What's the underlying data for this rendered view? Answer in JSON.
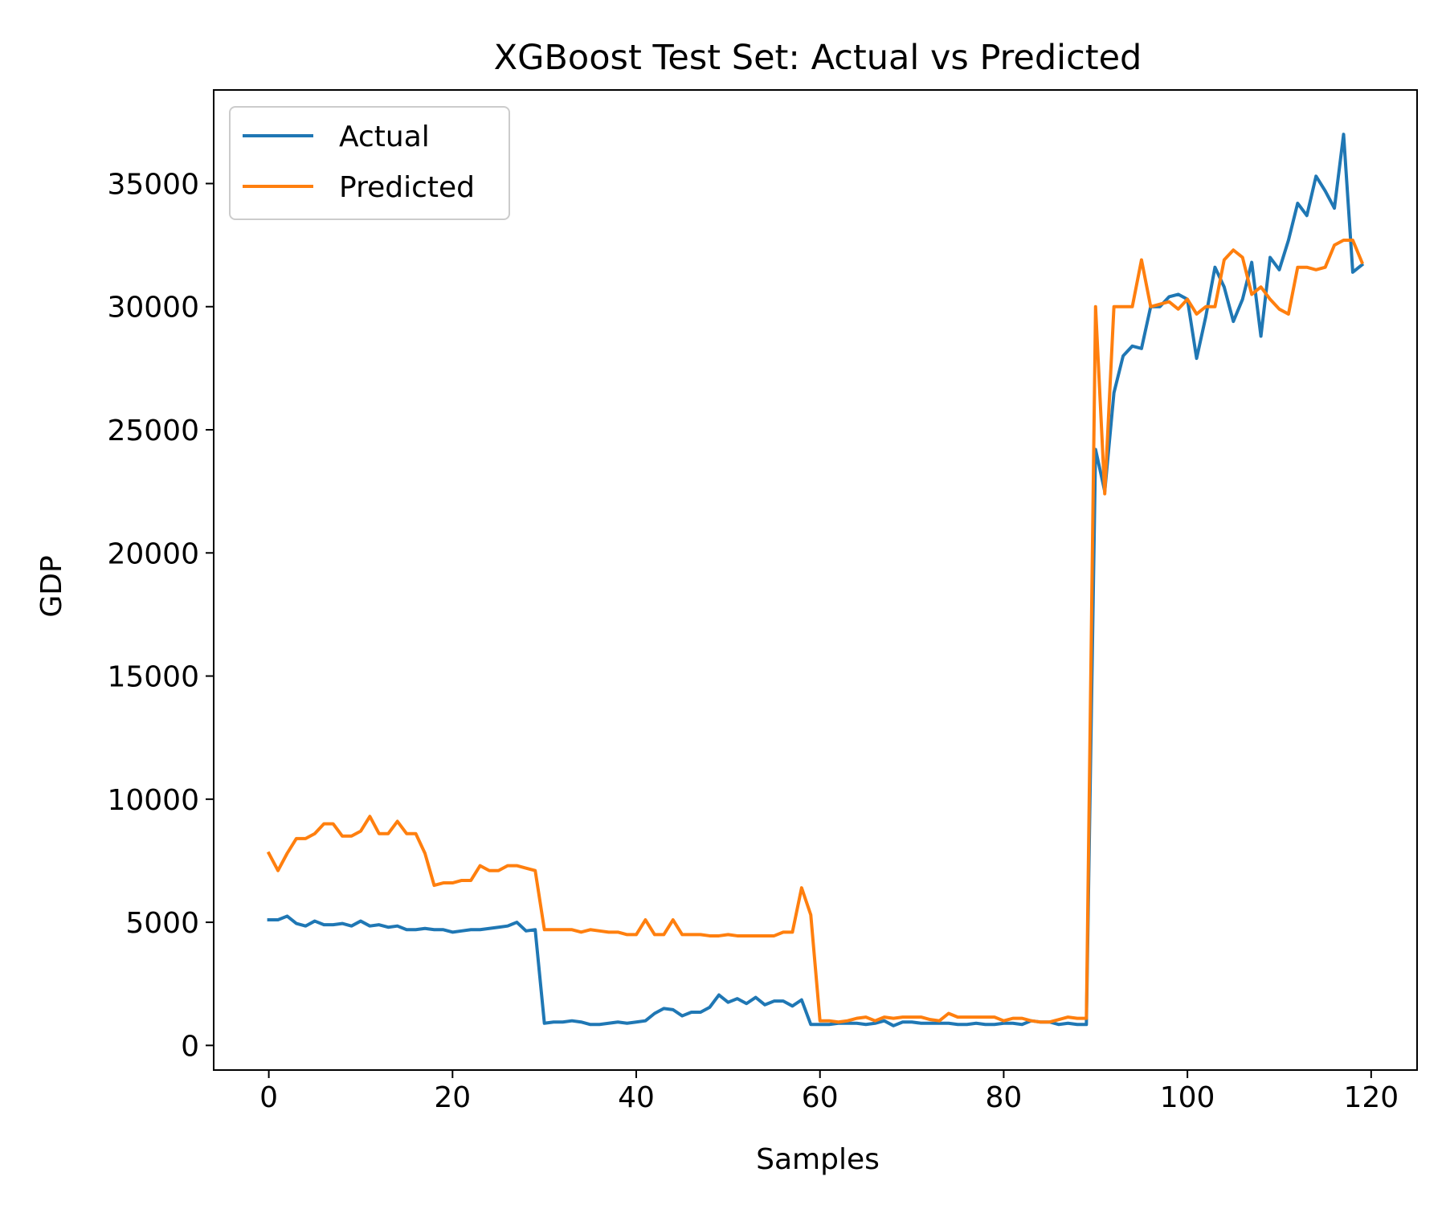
{
  "chart_data": {
    "type": "line",
    "title": "XGBoost Test Set: Actual vs Predicted",
    "xlabel": "Samples",
    "ylabel": "GDP",
    "xlim": [
      -6,
      125
    ],
    "ylim": [
      -1000,
      38800
    ],
    "xticks": [
      0,
      20,
      40,
      60,
      80,
      100,
      120
    ],
    "yticks": [
      0,
      5000,
      10000,
      15000,
      20000,
      25000,
      30000,
      35000
    ],
    "grid": false,
    "legend_position": "upper left",
    "series": [
      {
        "name": "Actual",
        "color": "#1f77b4",
        "values": [
          5100,
          5100,
          5250,
          4950,
          4850,
          5050,
          4900,
          4900,
          4950,
          4850,
          5050,
          4850,
          4900,
          4800,
          4850,
          4700,
          4700,
          4750,
          4700,
          4700,
          4600,
          4650,
          4700,
          4700,
          4750,
          4800,
          4850,
          5000,
          4650,
          4700,
          900,
          950,
          950,
          1000,
          950,
          850,
          850,
          900,
          950,
          900,
          950,
          1000,
          1300,
          1500,
          1450,
          1200,
          1350,
          1350,
          1550,
          2050,
          1750,
          1900,
          1700,
          1950,
          1650,
          1800,
          1800,
          1600,
          1850,
          850,
          850,
          850,
          900,
          900,
          900,
          850,
          900,
          1000,
          800,
          950,
          950,
          900,
          900,
          900,
          900,
          850,
          850,
          900,
          850,
          850,
          900,
          900,
          850,
          1000,
          950,
          950,
          850,
          900,
          850,
          850,
          24200,
          22500,
          26500,
          28000,
          28400,
          28300,
          30000,
          30000,
          30400,
          30500,
          30300,
          27900,
          29600,
          31600,
          30800,
          29400,
          30300,
          31800,
          28800,
          32000,
          31500,
          32700,
          34200,
          33700,
          35300,
          34700,
          34000,
          37000,
          31400,
          31700
        ]
      },
      {
        "name": "Predicted",
        "color": "#ff7f0e",
        "values": [
          7800,
          7100,
          7800,
          8400,
          8400,
          8600,
          9000,
          9000,
          8500,
          8500,
          8700,
          9300,
          8600,
          8600,
          9100,
          8600,
          8600,
          7800,
          6500,
          6600,
          6600,
          6700,
          6700,
          7300,
          7100,
          7100,
          7300,
          7300,
          7200,
          7100,
          4700,
          4700,
          4700,
          4700,
          4600,
          4700,
          4650,
          4600,
          4600,
          4500,
          4500,
          5100,
          4500,
          4500,
          5100,
          4500,
          4500,
          4500,
          4450,
          4450,
          4500,
          4450,
          4450,
          4450,
          4450,
          4450,
          4600,
          4600,
          6400,
          5300,
          1000,
          1000,
          950,
          1000,
          1100,
          1150,
          1000,
          1150,
          1100,
          1150,
          1150,
          1150,
          1050,
          1000,
          1300,
          1150,
          1150,
          1150,
          1150,
          1150,
          1000,
          1100,
          1100,
          1000,
          950,
          950,
          1050,
          1150,
          1100,
          1100,
          30000,
          22400,
          30000,
          30000,
          30000,
          31900,
          30000,
          30100,
          30200,
          29900,
          30300,
          29700,
          30000,
          30000,
          31900,
          32300,
          32000,
          30500,
          30800,
          30300,
          29900,
          29700,
          31600,
          31600,
          31500,
          31600,
          32500,
          32700,
          32700,
          31800
        ]
      }
    ]
  }
}
